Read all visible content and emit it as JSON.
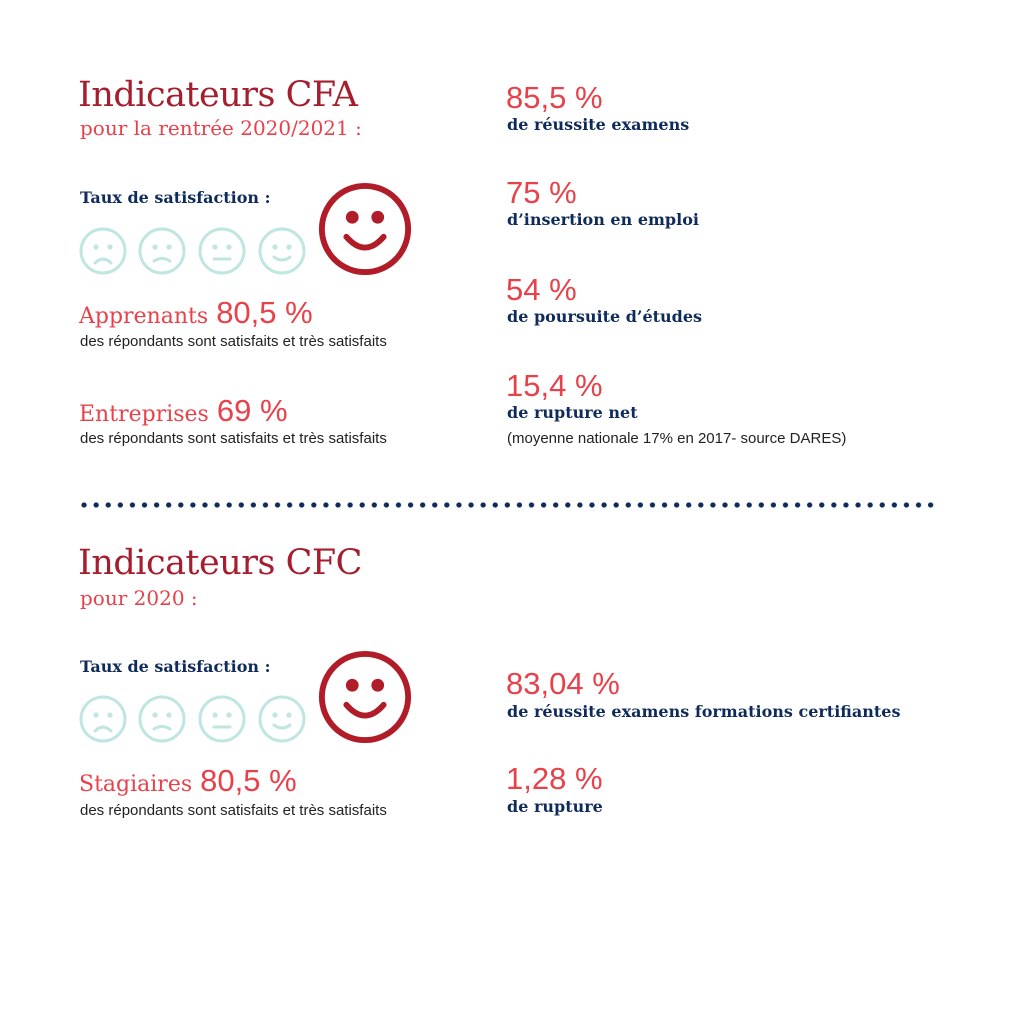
{
  "cfa": {
    "title": "Indicateurs CFA",
    "subtitle": "pour la rentrée 2020/2021 :",
    "satisfaction_label": "Taux de satisfaction :",
    "groups": [
      {
        "name": "Apprenants",
        "value": "80,5 %",
        "description": "des répondants sont satisfaits et très satisfaits"
      },
      {
        "name": "Entreprises",
        "value": "69 %",
        "description": "des répondants sont satisfaits et très satisfaits"
      }
    ],
    "stats": [
      {
        "value": "85,5 %",
        "label": "de réussite examens"
      },
      {
        "value": "75 %",
        "label": "d’insertion en emploi"
      },
      {
        "value": "54 %",
        "label": "de poursuite d’études"
      },
      {
        "value": "15,4 %",
        "label": "de rupture net",
        "note": "(moyenne nationale 17% en 2017- source DARES)"
      }
    ]
  },
  "cfc": {
    "title": "Indicateurs CFC",
    "subtitle": "pour 2020 :",
    "satisfaction_label": "Taux de satisfaction :",
    "groups": [
      {
        "name": "Stagiaires",
        "value": "80,5 %",
        "description": "des répondants sont satisfaits et très satisfaits"
      }
    ],
    "stats": [
      {
        "value": "83,04 %",
        "label": "de réussite examens formations certifiantes"
      },
      {
        "value": "1,28 %",
        "label": "de rupture"
      }
    ]
  },
  "icons": {
    "scale": [
      "very-sad-face-icon",
      "sad-face-icon",
      "neutral-face-icon",
      "smile-face-icon",
      "very-happy-face-icon"
    ],
    "selected": "very-happy-face-icon"
  },
  "colors": {
    "title": "#a51e2d",
    "accent": "#e8414a",
    "navy": "#0f2b5b",
    "faded_face": "#bfe6e1",
    "active_face": "#b01c28"
  }
}
